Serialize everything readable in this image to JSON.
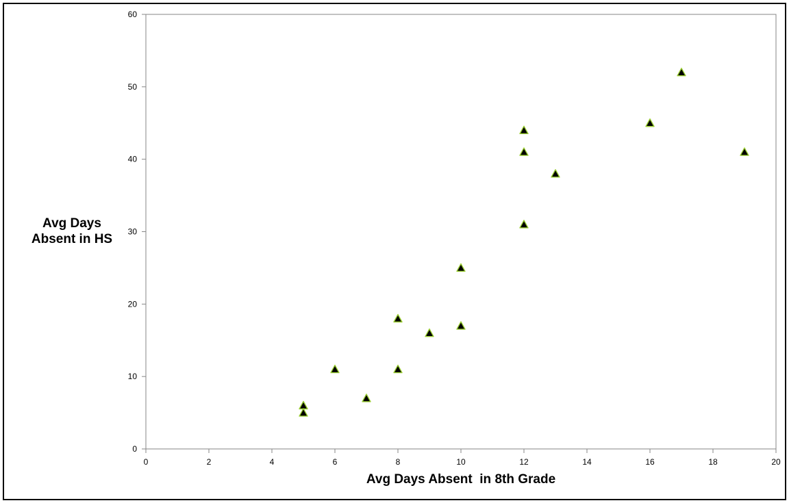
{
  "chart_data": {
    "type": "scatter",
    "title": "",
    "xlabel": "Avg Days Absent  in 8th Grade",
    "ylabel_lines": [
      "Avg Days",
      "Absent in HS"
    ],
    "xlim": [
      0,
      20
    ],
    "ylim": [
      0,
      60
    ],
    "xticks": [
      0,
      2,
      4,
      6,
      8,
      10,
      12,
      14,
      16,
      18,
      20
    ],
    "yticks": [
      0,
      10,
      20,
      30,
      40,
      50,
      60
    ],
    "grid": false,
    "legend": "none",
    "marker": "triangle",
    "marker_fill": "#000000",
    "marker_edge": "#9acd32",
    "points": [
      {
        "x": 5,
        "y": 6
      },
      {
        "x": 5,
        "y": 5
      },
      {
        "x": 6,
        "y": 11
      },
      {
        "x": 7,
        "y": 7
      },
      {
        "x": 8,
        "y": 18
      },
      {
        "x": 8,
        "y": 11
      },
      {
        "x": 9,
        "y": 16
      },
      {
        "x": 10,
        "y": 25
      },
      {
        "x": 10,
        "y": 17
      },
      {
        "x": 12,
        "y": 44
      },
      {
        "x": 12,
        "y": 41
      },
      {
        "x": 12,
        "y": 31
      },
      {
        "x": 13,
        "y": 38
      },
      {
        "x": 16,
        "y": 45
      },
      {
        "x": 17,
        "y": 52
      },
      {
        "x": 19,
        "y": 41
      }
    ]
  }
}
